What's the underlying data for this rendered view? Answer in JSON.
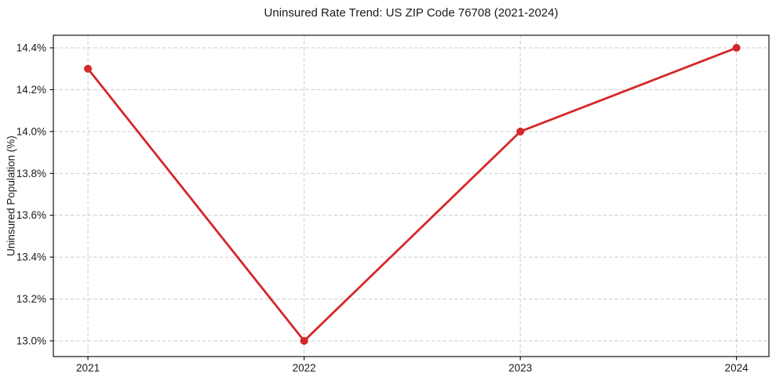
{
  "chart_data": {
    "type": "line",
    "title": "Uninsured Rate Trend: US ZIP Code 76708 (2021-2024)",
    "xlabel": "",
    "ylabel": "Uninsured Population (%)",
    "x": [
      2021,
      2022,
      2023,
      2024
    ],
    "values": [
      14.3,
      13.0,
      14.0,
      14.4
    ],
    "xticks": [
      2021,
      2022,
      2023,
      2024
    ],
    "xtick_labels": [
      "2021",
      "2022",
      "2023",
      "2024"
    ],
    "yticks": [
      13.0,
      13.2,
      13.4,
      13.6,
      13.8,
      14.0,
      14.2,
      14.4
    ],
    "ytick_labels": [
      "13.0%",
      "13.2%",
      "13.4%",
      "13.6%",
      "13.8%",
      "14.0%",
      "14.2%",
      "14.4%"
    ],
    "xlim": [
      2020.84,
      2024.15
    ],
    "ylim": [
      12.925,
      14.46
    ],
    "grid": "dashed",
    "grid_color": "#cccccc",
    "line_color": "#d62728",
    "marker": "circle",
    "spine_color": "#000000",
    "background_color": "#ffffff"
  }
}
